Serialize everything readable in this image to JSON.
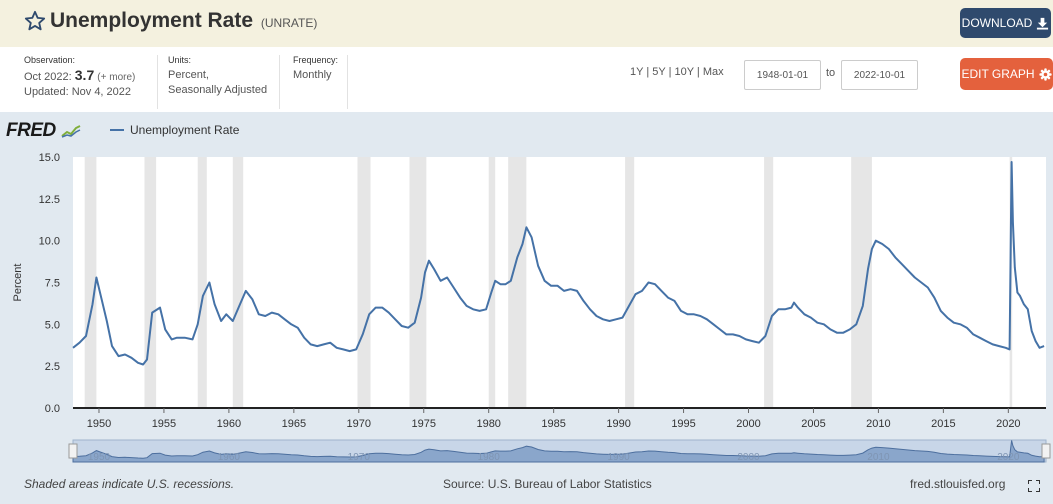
{
  "header": {
    "title": "Unemployment Rate",
    "code": "(UNRATE)",
    "download_label": "DOWNLOAD"
  },
  "meta": {
    "observation_label": "Observation:",
    "observation_date": "Oct 2022:",
    "observation_value": "3.7",
    "observation_more": "(+ more)",
    "updated": "Updated: Nov 4, 2022",
    "units_label": "Units:",
    "units_line1": "Percent,",
    "units_line2": "Seasonally Adjusted",
    "frequency_label": "Frequency:",
    "frequency_value": "Monthly",
    "range_links": [
      "1Y",
      "5Y",
      "10Y",
      "Max"
    ],
    "date_from": "1948-01-01",
    "to_label": "to",
    "date_to": "2022-10-01",
    "edit_label": "EDIT GRAPH"
  },
  "chart": {
    "logo": "FRED",
    "legend_label": "Unemployment Rate"
  },
  "footer": {
    "recession_note": "Shaded areas indicate U.S. recessions.",
    "source": "Source: U.S. Bureau of Labor Statistics",
    "site": "fred.stlouisfed.org"
  },
  "colors": {
    "line": "#4572a7",
    "recession": "#e6e6e6",
    "header_bg": "#f4f1df",
    "chart_bg": "#e1e9f0",
    "download_btn": "#2f4a6d",
    "edit_btn": "#e4613d"
  },
  "chart_data": {
    "type": "line",
    "title": "",
    "xlabel": "",
    "ylabel": "Percent",
    "xlim": [
      1948.0,
      2022.9
    ],
    "ylim": [
      0,
      15
    ],
    "yticks": [
      "0.0",
      "2.5",
      "5.0",
      "7.5",
      "10.0",
      "12.5",
      "15.0"
    ],
    "xticks": [
      "1950",
      "1955",
      "1960",
      "1965",
      "1970",
      "1975",
      "1980",
      "1985",
      "1990",
      "1995",
      "2000",
      "2005",
      "2010",
      "2015",
      "2020"
    ],
    "navigator_ticks": [
      "1950",
      "1960",
      "1970",
      "1980",
      "1990",
      "2000",
      "2010",
      "2020"
    ],
    "grid": false,
    "legend": "top-left",
    "recessions": [
      [
        1948.9,
        1949.8
      ],
      [
        1953.5,
        1954.4
      ],
      [
        1957.6,
        1958.3
      ],
      [
        1960.3,
        1961.1
      ],
      [
        1969.9,
        1970.9
      ],
      [
        1973.9,
        1975.2
      ],
      [
        1980.0,
        1980.5
      ],
      [
        1981.5,
        1982.9
      ],
      [
        1990.5,
        1991.2
      ],
      [
        2001.2,
        2001.9
      ],
      [
        2007.9,
        2009.5
      ],
      [
        2020.1,
        2020.3
      ]
    ],
    "series": [
      {
        "name": "Unemployment Rate",
        "x": [
          1948.0,
          1948.5,
          1949.0,
          1949.5,
          1949.8,
          1950.2,
          1950.6,
          1951.0,
          1951.5,
          1952.0,
          1952.5,
          1953.0,
          1953.4,
          1953.7,
          1954.1,
          1954.7,
          1955.1,
          1955.6,
          1956.0,
          1956.6,
          1957.2,
          1957.6,
          1958.0,
          1958.5,
          1958.9,
          1959.4,
          1959.8,
          1960.3,
          1960.8,
          1961.3,
          1961.8,
          1962.3,
          1962.8,
          1963.3,
          1963.8,
          1964.3,
          1964.8,
          1965.3,
          1965.8,
          1966.3,
          1966.8,
          1967.3,
          1967.8,
          1968.3,
          1968.8,
          1969.3,
          1969.8,
          1970.3,
          1970.8,
          1971.3,
          1971.8,
          1972.3,
          1972.8,
          1973.3,
          1973.8,
          1974.3,
          1974.8,
          1975.1,
          1975.4,
          1975.8,
          1976.3,
          1976.8,
          1977.3,
          1977.8,
          1978.3,
          1978.8,
          1979.3,
          1979.8,
          1980.2,
          1980.5,
          1980.9,
          1981.3,
          1981.7,
          1982.2,
          1982.6,
          1982.9,
          1983.3,
          1983.8,
          1984.3,
          1984.8,
          1985.3,
          1985.8,
          1986.3,
          1986.8,
          1987.3,
          1987.8,
          1988.3,
          1988.8,
          1989.3,
          1989.8,
          1990.3,
          1990.8,
          1991.3,
          1991.8,
          1992.3,
          1992.8,
          1993.3,
          1993.8,
          1994.3,
          1994.8,
          1995.3,
          1995.8,
          1996.3,
          1996.8,
          1997.3,
          1997.8,
          1998.3,
          1998.8,
          1999.3,
          1999.8,
          2000.3,
          2000.8,
          2001.3,
          2001.8,
          2002.3,
          2002.8,
          2003.3,
          2003.5,
          2003.8,
          2004.3,
          2004.8,
          2005.3,
          2005.8,
          2006.3,
          2006.8,
          2007.3,
          2007.8,
          2008.3,
          2008.8,
          2009.2,
          2009.5,
          2009.8,
          2010.3,
          2010.8,
          2011.3,
          2011.8,
          2012.3,
          2012.8,
          2013.3,
          2013.8,
          2014.3,
          2014.8,
          2015.3,
          2015.8,
          2016.3,
          2016.8,
          2017.3,
          2017.8,
          2018.3,
          2018.8,
          2019.3,
          2019.8,
          2020.1,
          2020.25,
          2020.35,
          2020.5,
          2020.7,
          2020.9,
          2021.2,
          2021.5,
          2021.8,
          2022.1,
          2022.4,
          2022.75
        ],
        "values": [
          3.6,
          3.9,
          4.3,
          6.2,
          7.8,
          6.5,
          5.2,
          3.7,
          3.1,
          3.2,
          3.0,
          2.7,
          2.6,
          2.9,
          5.7,
          6.0,
          4.7,
          4.1,
          4.2,
          4.2,
          4.1,
          5.0,
          6.7,
          7.5,
          6.2,
          5.2,
          5.6,
          5.2,
          6.1,
          7.0,
          6.5,
          5.6,
          5.5,
          5.7,
          5.6,
          5.3,
          5.0,
          4.8,
          4.2,
          3.8,
          3.7,
          3.8,
          3.9,
          3.6,
          3.5,
          3.4,
          3.5,
          4.4,
          5.6,
          6.0,
          6.0,
          5.7,
          5.3,
          4.9,
          4.8,
          5.1,
          6.6,
          8.1,
          8.8,
          8.3,
          7.6,
          7.8,
          7.2,
          6.6,
          6.1,
          5.9,
          5.8,
          5.9,
          6.9,
          7.6,
          7.4,
          7.4,
          7.6,
          9.0,
          9.8,
          10.8,
          10.2,
          8.5,
          7.6,
          7.3,
          7.3,
          7.0,
          7.1,
          7.0,
          6.4,
          5.9,
          5.5,
          5.3,
          5.2,
          5.3,
          5.4,
          6.1,
          6.8,
          7.0,
          7.5,
          7.4,
          7.0,
          6.6,
          6.4,
          5.8,
          5.6,
          5.6,
          5.5,
          5.3,
          5.0,
          4.7,
          4.4,
          4.4,
          4.3,
          4.1,
          4.0,
          3.9,
          4.3,
          5.5,
          5.9,
          5.9,
          6.0,
          6.3,
          6.0,
          5.6,
          5.4,
          5.1,
          5.0,
          4.7,
          4.5,
          4.5,
          4.7,
          5.0,
          6.1,
          8.3,
          9.5,
          10.0,
          9.8,
          9.5,
          9.0,
          8.6,
          8.2,
          7.8,
          7.5,
          7.2,
          6.6,
          5.8,
          5.4,
          5.1,
          5.0,
          4.8,
          4.4,
          4.2,
          4.0,
          3.8,
          3.7,
          3.6,
          3.5,
          14.7,
          11.1,
          8.4,
          6.9,
          6.7,
          6.2,
          5.9,
          4.6,
          4.0,
          3.6,
          3.7
        ]
      }
    ]
  }
}
